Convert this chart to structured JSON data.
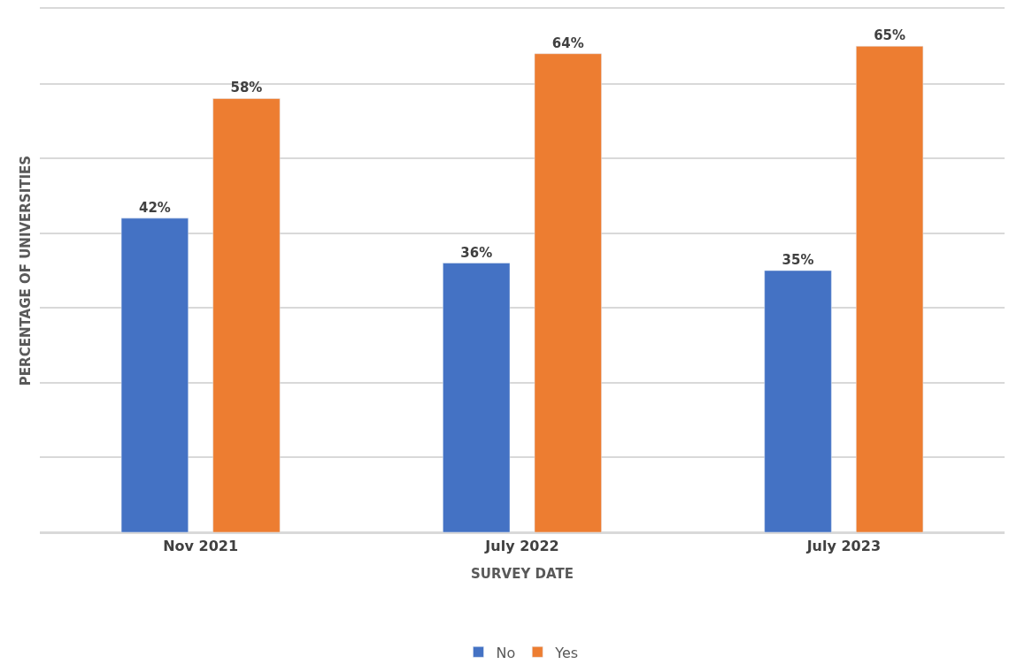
{
  "chart_data": {
    "type": "bar",
    "xlabel": "SURVEY DATE",
    "ylabel": "PERCENTAGE OF UNIVERSITIES",
    "categories": [
      "Nov 2021",
      "July 2022",
      "July 2023"
    ],
    "series": [
      {
        "name": "No",
        "color": "#4472c4",
        "values": [
          42,
          36,
          35
        ],
        "value_labels": [
          "42%",
          "36%",
          "35%"
        ]
      },
      {
        "name": "Yes",
        "color": "#ed7d31",
        "values": [
          58,
          64,
          65
        ],
        "value_labels": [
          "58%",
          "64%",
          "65%"
        ]
      }
    ],
    "ylim": [
      0,
      70
    ],
    "yticks": [
      {
        "value": 0,
        "label": null
      },
      {
        "value": 10,
        "label": null
      },
      {
        "value": 20,
        "label": null
      },
      {
        "value": 30,
        "label": null
      },
      {
        "value": 40,
        "label": null
      },
      {
        "value": 50,
        "label": null
      },
      {
        "value": 60,
        "label": null
      },
      {
        "value": 70,
        "label": null
      }
    ],
    "tick_labels": "x",
    "grid": "y",
    "legend": "bottom"
  }
}
